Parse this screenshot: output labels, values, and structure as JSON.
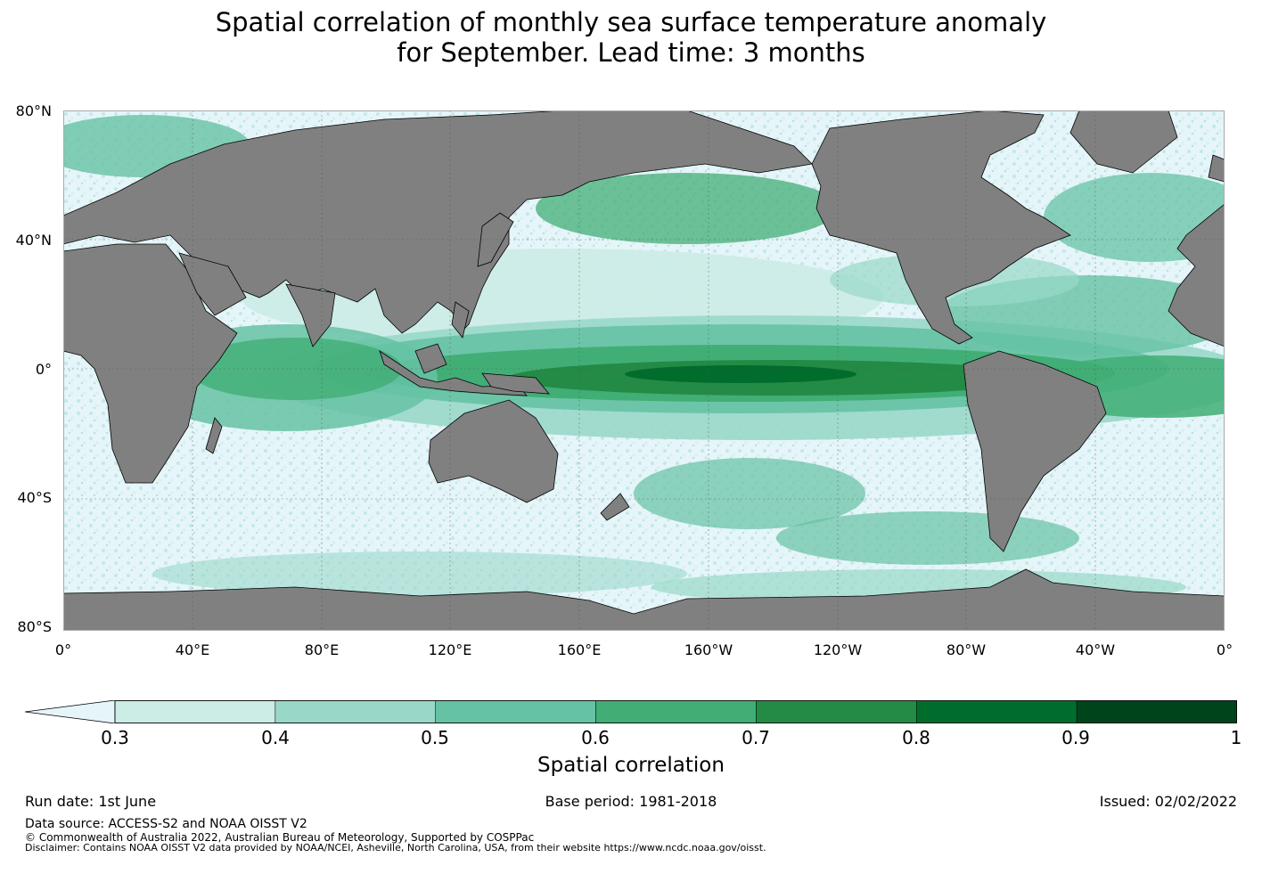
{
  "title": {
    "line1": "Spatial correlation of monthly sea surface temperature anomaly",
    "line2": "for September. Lead time: 3 months"
  },
  "map": {
    "lat_labels": [
      "80°N",
      "40°N",
      "0°",
      "40°S",
      "80°S"
    ],
    "lon_labels": [
      "0°",
      "40°E",
      "80°E",
      "120°E",
      "160°E",
      "160°W",
      "120°W",
      "80°W",
      "40°W",
      "0°"
    ],
    "land_color": "#808080",
    "ocean_low_color": "#e5f5f9"
  },
  "colorbar": {
    "label": "Spatial correlation",
    "ticks": [
      "0.3",
      "0.4",
      "0.5",
      "0.6",
      "0.7",
      "0.8",
      "0.9",
      "1"
    ],
    "colors": [
      "#ccece6",
      "#99d8c9",
      "#66c2a4",
      "#41ae76",
      "#238b45",
      "#006d2c",
      "#00441b"
    ],
    "extend_color": "#e5f5f9"
  },
  "footer": {
    "run_date": "Run date: 1st June",
    "base_period": "Base period: 1981-2018",
    "issued": "Issued: 02/02/2022",
    "data_source": "Data source: ACCESS-S2 and NOAA OISST V2",
    "copyright": "© Commonwealth of Australia 2022, Australian Bureau of Meteorology, Supported by COSPPac",
    "disclaimer": "Disclaimer: Contains NOAA OISST V2 data provided by NOAA/NCEI, Asheville, North Carolina, USA, from their website https://www.ncdc.noaa.gov/oisst."
  }
}
